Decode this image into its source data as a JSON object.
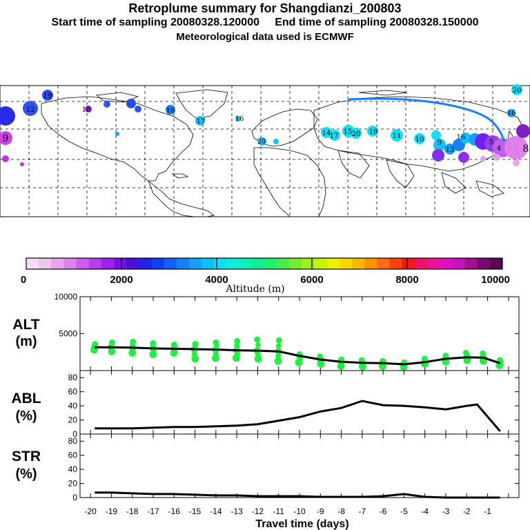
{
  "header": {
    "title": "Retroplume summary for Shangdianzi_200803",
    "line2_start": "Start time of sampling 20080328.120000",
    "line2_end": "End time of sampling 20080328.150000",
    "line3": "Meteorological data used is ECMWF"
  },
  "colors": {
    "colorbar": [
      "#f6dcf6",
      "#f0c4f0",
      "#e8a6ee",
      "#dc82ec",
      "#cc5cec",
      "#b83cec",
      "#a020f0",
      "#7a10e8",
      "#4a10d8",
      "#2020e8",
      "#1040f0",
      "#1460f4",
      "#1880f8",
      "#14a0fc",
      "#10c0fc",
      "#10dcf4",
      "#10ecdc",
      "#10f0b8",
      "#10ee94",
      "#24ec70",
      "#4aec4c",
      "#74ec30",
      "#a0ee20",
      "#c8f010",
      "#eef000",
      "#fcd800",
      "#fcb800",
      "#fc9400",
      "#fc6c10",
      "#fc4010",
      "#f41818",
      "#f0106c",
      "#f0109c",
      "#e010c0",
      "#c810c0",
      "#a01090",
      "#7a0870",
      "#5a0450"
    ],
    "green_dots": "#22ee44",
    "line": "#000000"
  },
  "map": {
    "labels": [
      {
        "n": "19",
        "c": "#1e3ef0"
      },
      {
        "n": "12",
        "c": "#2040f0"
      },
      {
        "n": "9",
        "c": "#d040e8"
      },
      {
        "n": "18",
        "c": "#a020f0"
      },
      {
        "n": "16",
        "c": "#1a80f8"
      },
      {
        "n": "17",
        "c": "#14c0fc"
      },
      {
        "n": "16",
        "c": "#14c0fc"
      },
      {
        "n": "20",
        "c": "#14c0fc"
      },
      {
        "n": "14",
        "c": "#10dcf4"
      },
      {
        "n": "17",
        "c": "#10dcf4"
      },
      {
        "n": "15",
        "c": "#10dcf4"
      },
      {
        "n": "20",
        "c": "#10dcf4"
      },
      {
        "n": "19",
        "c": "#10dcf4"
      },
      {
        "n": "11",
        "c": "#10dcf4"
      },
      {
        "n": "10",
        "c": "#10dcf4"
      },
      {
        "n": "9",
        "c": "#10dcf4"
      },
      {
        "n": "13",
        "c": "#10c0fc"
      },
      {
        "n": "16",
        "c": "#1a80f8"
      },
      {
        "n": "5",
        "c": "#8030e8"
      },
      {
        "n": "4",
        "c": "#a020f0"
      },
      {
        "n": "8",
        "c": "#e080e8"
      },
      {
        "n": "20",
        "c": "#10dcf4"
      },
      {
        "n": "16",
        "c": "#10dcf4"
      }
    ]
  },
  "colorbar": {
    "ticks": [
      "0",
      "2000",
      "4000",
      "6000",
      "8000",
      "10000"
    ],
    "label": "Altitude (m)"
  },
  "panels": {
    "alt": {
      "label1": "ALT",
      "label2": "(m)"
    },
    "abl": {
      "label1": "ABL",
      "label2": "(%)"
    },
    "str": {
      "label1": "STR",
      "label2": "(%)"
    }
  },
  "chart_data": [
    {
      "type": "line",
      "title": "ALT (m)",
      "xlabel": "Travel time (days)",
      "ylabel": "ALT (m)",
      "x": [
        -19.8,
        -19,
        -18,
        -17,
        -16,
        -15,
        -14,
        -13,
        -12,
        -11,
        -10,
        -9,
        -8,
        -7,
        -6,
        -5,
        -4,
        -3,
        -2,
        -1.2,
        -0.4
      ],
      "values": [
        3150,
        3150,
        3100,
        3000,
        2950,
        2900,
        2850,
        2750,
        2700,
        2600,
        2000,
        1500,
        1200,
        1050,
        1000,
        850,
        1150,
        1600,
        1800,
        1750,
        1000
      ],
      "ylim": [
        0,
        10000
      ],
      "yticks": [
        "5000",
        "10000"
      ],
      "scatter_x": [
        -19.8,
        -19,
        -18,
        -17,
        -16,
        -15,
        -14,
        -13,
        -12,
        -11,
        -10,
        -9,
        -8,
        -7,
        -6,
        -5,
        -4,
        -3,
        -2,
        -1.2,
        -0.4
      ],
      "scatter_upper": [
        3600,
        3800,
        3900,
        3700,
        3500,
        3600,
        3800,
        4000,
        4200,
        4100,
        2200,
        1900,
        1500,
        1400,
        1300,
        1100,
        1600,
        2000,
        2400,
        2300,
        1400
      ],
      "scatter_lower": [
        2800,
        2600,
        2400,
        2200,
        2400,
        1600,
        1700,
        1700,
        1600,
        1300,
        1100,
        900,
        600,
        550,
        600,
        500,
        900,
        1200,
        1400,
        1300,
        700
      ]
    },
    {
      "type": "line",
      "title": "ABL (%)",
      "xlabel": "Travel time (days)",
      "ylabel": "ABL (%)",
      "x": [
        -19.8,
        -19,
        -18,
        -17,
        -16,
        -15,
        -14,
        -13,
        -12,
        -11,
        -10,
        -9,
        -8,
        -7,
        -6,
        -5,
        -4,
        -3,
        -2,
        -1.5,
        -0.4
      ],
      "values": [
        8,
        8,
        8,
        9,
        10,
        10,
        11,
        12,
        14,
        19,
        24,
        32,
        37,
        47,
        41,
        40,
        38,
        35,
        40,
        42,
        4
      ],
      "ylim": [
        0,
        90
      ],
      "yticks": [
        "0",
        "20",
        "40",
        "60",
        "80"
      ]
    },
    {
      "type": "line",
      "title": "STR (%)",
      "xlabel": "Travel time (days)",
      "ylabel": "STR (%)",
      "x": [
        -19.8,
        -19,
        -18,
        -17,
        -16,
        -15,
        -14,
        -13,
        -12,
        -11,
        -10,
        -9,
        -8,
        -7,
        -6,
        -5,
        -4,
        -3,
        -2,
        -1,
        -0.4
      ],
      "values": [
        7,
        7,
        6,
        5,
        5,
        4,
        3,
        3,
        2,
        2,
        2,
        1,
        1,
        1,
        2,
        5,
        1,
        0,
        0,
        0,
        0
      ],
      "ylim": [
        0,
        90
      ],
      "yticks": [
        "0",
        "20",
        "40",
        "60",
        "80"
      ],
      "xticks": [
        "-20",
        "-19",
        "-18",
        "-17",
        "-16",
        "-15",
        "-14",
        "-13",
        "-12",
        "-11",
        "-10",
        "-9",
        "-8",
        "-7",
        "-6",
        "-5",
        "-4",
        "-3",
        "-2",
        "-1"
      ]
    }
  ]
}
